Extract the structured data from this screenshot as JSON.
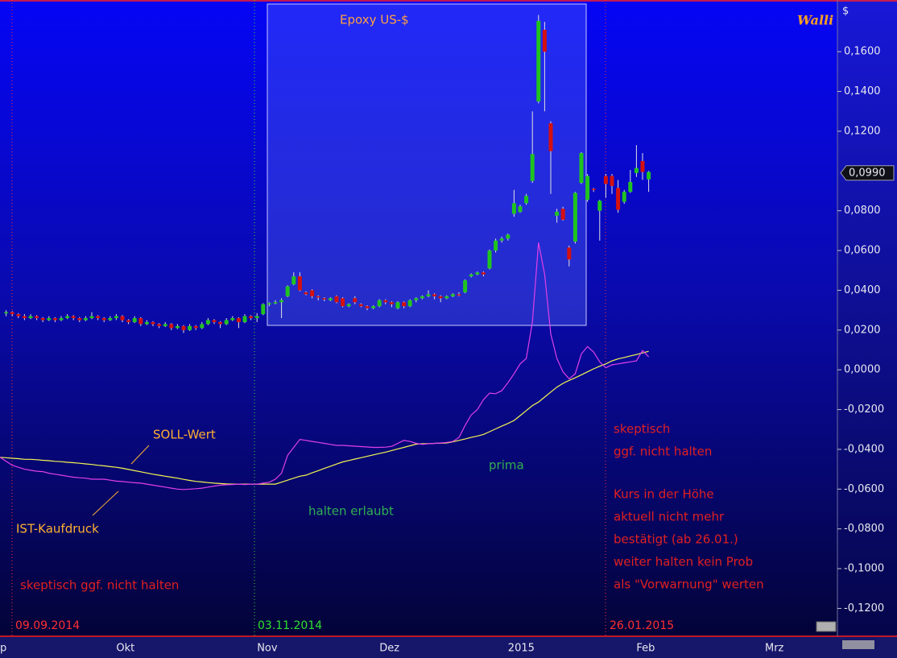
{
  "chart_data": {
    "type": "candlestick",
    "title": "Epoxy US-$",
    "logo": "Walli",
    "y_unit": "$",
    "up_color": "#1fc41f",
    "down_color": "#d41010",
    "ylim": [
      -0.134,
      0.186
    ],
    "yticks": [
      {
        "value": 0.16,
        "label": "0,1600"
      },
      {
        "value": 0.14,
        "label": "0,1400"
      },
      {
        "value": 0.12,
        "label": "0,1200"
      },
      {
        "value": 0.08,
        "label": "0,0800"
      },
      {
        "value": 0.06,
        "label": "0,0600"
      },
      {
        "value": 0.04,
        "label": "0,0400"
      },
      {
        "value": 0.02,
        "label": "0,0200"
      },
      {
        "value": 0,
        "label": "0,0000"
      },
      {
        "value": -0.02,
        "label": "-0,0200"
      },
      {
        "value": -0.04,
        "label": "-0,0400"
      },
      {
        "value": -0.06,
        "label": "-0,0600"
      },
      {
        "value": -0.08,
        "label": "-0,0800"
      },
      {
        "value": -0.1,
        "label": "-0,1000"
      },
      {
        "value": -0.12,
        "label": "-0,1200"
      }
    ],
    "last_price": {
      "value": 0.099,
      "label": "0,0990"
    },
    "categories": [
      "p",
      null,
      null,
      null,
      null,
      null,
      null,
      null,
      null,
      null,
      null,
      null,
      null,
      null,
      null,
      null,
      null,
      null,
      null,
      "Okt",
      null,
      null,
      null,
      null,
      null,
      null,
      null,
      null,
      null,
      null,
      null,
      null,
      null,
      null,
      null,
      null,
      null,
      null,
      null,
      null,
      null,
      null,
      "Nov",
      null,
      null,
      null,
      null,
      null,
      null,
      null,
      null,
      null,
      null,
      null,
      null,
      null,
      null,
      null,
      null,
      null,
      null,
      null,
      "Dez",
      null,
      null,
      null,
      null,
      null,
      null,
      null,
      null,
      null,
      null,
      null,
      null,
      null,
      null,
      null,
      null,
      null,
      null,
      null,
      null,
      "2015",
      null,
      null,
      null,
      null,
      null,
      null,
      null,
      null,
      null,
      null,
      null,
      null,
      null,
      null,
      null,
      null,
      null,
      null,
      null,
      null,
      "Feb",
      null,
      null,
      null,
      null,
      null,
      null,
      null,
      null,
      null,
      null,
      null,
      null,
      null,
      null,
      null,
      null,
      null,
      null,
      null,
      null,
      "Mrz",
      null,
      null,
      null,
      null,
      null,
      null,
      null,
      null,
      null,
      null,
      null
    ],
    "open": [
      null,
      0.0285,
      0.029,
      0.028,
      0.027,
      0.026,
      0.027,
      0.026,
      0.025,
      0.026,
      0.025,
      0.026,
      0.027,
      0.026,
      0.025,
      0.026,
      0.027,
      0.026,
      0.025,
      0.026,
      0.027,
      0.025,
      0.024,
      0.026,
      0.023,
      0.024,
      0.023,
      0.022,
      0.023,
      0.021,
      0.022,
      0.02,
      0.022,
      0.021,
      0.023,
      0.025,
      0.024,
      0.023,
      0.025,
      0.026,
      0.024,
      0.027,
      0.026,
      0.028,
      0.033,
      0.0335,
      0.034,
      0.037,
      0.043,
      0.047,
      0.039,
      0.04,
      0.037,
      0.036,
      0.035,
      0.037,
      0.036,
      0.032,
      0.036,
      0.033,
      0.032,
      0.031,
      0.032,
      0.035,
      0.034,
      0.031,
      0.034,
      0.032,
      0.035,
      0.036,
      0.037,
      0.038,
      0.037,
      0.036,
      0.037,
      0.038,
      0.039,
      0.047,
      0.048,
      0.049,
      0.051,
      0.06,
      0.065,
      0.066,
      0.0785,
      0.0794,
      0.0838,
      0.095,
      0.135,
      0.171,
      0.124,
      0.0775,
      0.081,
      0.0615,
      0.0645,
      0.094,
      0.0855,
      0.091,
      0.08,
      0.0975,
      0.0975,
      0.0915,
      0.0845,
      0.0895,
      0.099,
      0.105,
      0.0958,
      null,
      null,
      null,
      null,
      null,
      null,
      null,
      null,
      null,
      null,
      null,
      null,
      null,
      null,
      null,
      null,
      null,
      null,
      null,
      null,
      null,
      null,
      null,
      null,
      null,
      null,
      null,
      null,
      null,
      null
    ],
    "high": [
      null,
      0.03,
      0.0295,
      0.0285,
      0.028,
      0.028,
      0.0275,
      0.0265,
      0.027,
      0.0265,
      0.027,
      0.028,
      0.0275,
      0.0265,
      0.027,
      0.029,
      0.0275,
      0.0265,
      0.027,
      0.028,
      0.0275,
      0.0255,
      0.027,
      0.0265,
      0.025,
      0.0245,
      0.0235,
      0.024,
      0.0235,
      0.023,
      0.0225,
      0.023,
      0.0225,
      0.024,
      0.026,
      0.0255,
      0.0245,
      0.026,
      0.027,
      0.0265,
      0.028,
      0.0275,
      0.0285,
      0.0335,
      0.034,
      0.035,
      0.036,
      0.0425,
      0.049,
      0.049,
      0.0395,
      0.0405,
      0.0375,
      0.0365,
      0.0365,
      0.0375,
      0.0365,
      0.0335,
      0.037,
      0.0335,
      0.0325,
      0.0325,
      0.0355,
      0.0355,
      0.0345,
      0.0345,
      0.0345,
      0.0355,
      0.0365,
      0.0375,
      0.04,
      0.0385,
      0.0375,
      0.0375,
      0.0385,
      0.039,
      0.0455,
      0.0485,
      0.0495,
      0.0495,
      0.0605,
      0.066,
      0.067,
      0.0685,
      0.0905,
      0.083,
      0.0885,
      0.13,
      0.1785,
      0.175,
      0.125,
      0.081,
      0.082,
      0.0625,
      0.0895,
      0.1095,
      0.0985,
      0.0915,
      0.0855,
      0.0985,
      0.0985,
      0.0955,
      0.0905,
      0.1005,
      0.113,
      0.109,
      0.1,
      null,
      null,
      null,
      null,
      null,
      null,
      null,
      null,
      null,
      null,
      null,
      null,
      null,
      null,
      null,
      null,
      null,
      null,
      null,
      null,
      null,
      null,
      null,
      null,
      null,
      null,
      null,
      null,
      null,
      null
    ],
    "low": [
      null,
      0.027,
      0.027,
      0.026,
      0.025,
      0.0255,
      0.025,
      0.024,
      0.0245,
      0.024,
      0.0245,
      0.0255,
      0.025,
      0.024,
      0.0245,
      0.0255,
      0.025,
      0.024,
      0.0245,
      0.025,
      0.024,
      0.023,
      0.0235,
      0.022,
      0.0225,
      0.022,
      0.021,
      0.0215,
      0.02,
      0.0205,
      0.0185,
      0.0195,
      0.02,
      0.0205,
      0.0225,
      0.023,
      0.021,
      0.0225,
      0.0245,
      0.021,
      0.0235,
      0.025,
      0.024,
      0.0275,
      0.032,
      0.033,
      0.026,
      0.0365,
      0.0425,
      0.0395,
      0.0375,
      0.036,
      0.035,
      0.0345,
      0.0345,
      0.0335,
      0.0315,
      0.0315,
      0.033,
      0.0315,
      0.03,
      0.0305,
      0.0315,
      0.033,
      0.0315,
      0.0305,
      0.031,
      0.0315,
      0.034,
      0.0355,
      0.0365,
      0.0355,
      0.034,
      0.0355,
      0.0365,
      0.037,
      0.0385,
      0.0465,
      0.0475,
      0.047,
      0.0505,
      0.059,
      0.064,
      0.065,
      0.077,
      0.079,
      0.083,
      0.094,
      0.134,
      0.13,
      0.0885,
      0.074,
      0.075,
      0.052,
      0.0635,
      0.0935,
      0.0845,
      0.0895,
      0.065,
      0.0865,
      0.0885,
      0.079,
      0.0835,
      0.089,
      0.097,
      0.0955,
      0.0895,
      null,
      null,
      null,
      null,
      null,
      null,
      null,
      null,
      null,
      null,
      null,
      null,
      null,
      null,
      null,
      null,
      null,
      null,
      null,
      null,
      null,
      null,
      null,
      null,
      null,
      null,
      null,
      null,
      null,
      null
    ],
    "close": [
      null,
      0.029,
      0.028,
      0.027,
      0.026,
      0.027,
      0.026,
      0.025,
      0.026,
      0.025,
      0.026,
      0.027,
      0.026,
      0.025,
      0.026,
      0.027,
      0.026,
      0.025,
      0.026,
      0.027,
      0.025,
      0.024,
      0.026,
      0.023,
      0.024,
      0.023,
      0.022,
      0.023,
      0.021,
      0.022,
      0.02,
      0.022,
      0.021,
      0.023,
      0.025,
      0.024,
      0.023,
      0.025,
      0.026,
      0.024,
      0.027,
      0.026,
      0.027,
      0.033,
      0.0335,
      0.034,
      0.035,
      0.042,
      0.047,
      0.04,
      0.038,
      0.037,
      0.0365,
      0.0355,
      0.036,
      0.034,
      0.032,
      0.033,
      0.034,
      0.032,
      0.031,
      0.032,
      0.035,
      0.034,
      0.033,
      0.034,
      0.032,
      0.035,
      0.036,
      0.037,
      0.038,
      0.037,
      0.036,
      0.037,
      0.038,
      0.0375,
      0.045,
      0.048,
      0.049,
      0.048,
      0.06,
      0.065,
      0.066,
      0.068,
      0.0838,
      0.0822,
      0.0875,
      0.1085,
      0.1755,
      0.16,
      0.11,
      0.0795,
      0.0755,
      0.0555,
      0.089,
      0.109,
      0.0975,
      0.0905,
      0.085,
      0.0935,
      0.0925,
      0.0805,
      0.0895,
      0.0945,
      0.1015,
      0.0995,
      0.0995,
      null,
      null,
      null,
      null,
      null,
      null,
      null,
      null,
      null,
      null,
      null,
      null,
      null,
      null,
      null,
      null,
      null,
      null,
      null,
      null,
      null,
      null,
      null,
      null,
      null,
      null,
      null,
      null,
      null,
      null
    ],
    "lines": [
      {
        "name": "SOLL-Wert",
        "color": "#f5f552",
        "values": [
          -0.044,
          -0.0442,
          -0.0445,
          -0.0447,
          -0.045,
          -0.045,
          -0.0452,
          -0.0455,
          -0.0457,
          -0.046,
          -0.0462,
          -0.0465,
          -0.0467,
          -0.047,
          -0.0473,
          -0.0476,
          -0.048,
          -0.0483,
          -0.0487,
          -0.049,
          -0.0495,
          -0.0501,
          -0.0507,
          -0.0513,
          -0.0519,
          -0.0525,
          -0.053,
          -0.0535,
          -0.054,
          -0.0545,
          -0.0551,
          -0.0556,
          -0.0561,
          -0.0564,
          -0.0567,
          -0.057,
          -0.0572,
          -0.0574,
          -0.0575,
          -0.0575,
          -0.0575,
          -0.0575,
          -0.0575,
          -0.0575,
          -0.0575,
          -0.0575,
          -0.0565,
          -0.0555,
          -0.0545,
          -0.0535,
          -0.053,
          -0.0518,
          -0.0507,
          -0.0496,
          -0.0485,
          -0.0474,
          -0.0463,
          -0.0456,
          -0.0449,
          -0.0442,
          -0.0435,
          -0.0428,
          -0.0421,
          -0.0414,
          -0.0406,
          -0.0398,
          -0.039,
          -0.0382,
          -0.0374,
          -0.0372,
          -0.0371,
          -0.037,
          -0.0369,
          -0.0368,
          -0.0362,
          -0.0355,
          -0.0348,
          -0.034,
          -0.0333,
          -0.0325,
          -0.0311,
          -0.0297,
          -0.0283,
          -0.027,
          -0.0255,
          -0.023,
          -0.0205,
          -0.018,
          -0.0162,
          -0.0137,
          -0.0112,
          -0.0087,
          -0.0068,
          -0.0053,
          -0.004,
          -0.0025,
          -0.001,
          0.0005,
          0.0018,
          0.003,
          0.0045,
          0.0055,
          0.0062,
          0.007,
          0.0077,
          0.0085,
          0.0093,
          null,
          null,
          null,
          null,
          null,
          null,
          null,
          null,
          null,
          null,
          null,
          null,
          null,
          null,
          null,
          null,
          null,
          null,
          null,
          null,
          null,
          null,
          null,
          null,
          null,
          null,
          null,
          null,
          null,
          null
        ]
      },
      {
        "name": "IST-Kaufdruck",
        "color": "#e040e8",
        "values": [
          -0.044,
          -0.046,
          -0.048,
          -0.049,
          -0.05,
          -0.0505,
          -0.051,
          -0.0512,
          -0.052,
          -0.0525,
          -0.053,
          -0.0535,
          -0.054,
          -0.0543,
          -0.0545,
          -0.055,
          -0.055,
          -0.055,
          -0.0555,
          -0.056,
          -0.0562,
          -0.0565,
          -0.0568,
          -0.057,
          -0.0575,
          -0.058,
          -0.0585,
          -0.059,
          -0.0595,
          -0.06,
          -0.0602,
          -0.06,
          -0.0598,
          -0.0595,
          -0.059,
          -0.0585,
          -0.058,
          -0.0578,
          -0.0577,
          -0.0575,
          -0.0577,
          -0.0575,
          -0.0575,
          -0.057,
          -0.0565,
          -0.055,
          -0.052,
          -0.043,
          -0.039,
          -0.035,
          -0.0355,
          -0.036,
          -0.0365,
          -0.037,
          -0.0375,
          -0.038,
          -0.038,
          -0.0382,
          -0.0384,
          -0.0386,
          -0.0388,
          -0.039,
          -0.039,
          -0.0389,
          -0.0385,
          -0.037,
          -0.0355,
          -0.036,
          -0.037,
          -0.0375,
          -0.0372,
          -0.037,
          -0.0368,
          -0.0365,
          -0.036,
          -0.034,
          -0.028,
          -0.0227,
          -0.02,
          -0.015,
          -0.0117,
          -0.012,
          -0.0105,
          -0.0065,
          -0.002,
          0.003,
          0.0057,
          0.024,
          0.064,
          0.048,
          0.018,
          0.0057,
          -0.001,
          -0.0045,
          -0.002,
          0.008,
          0.0117,
          0.009,
          0.004,
          0.001,
          0.0025,
          0.003,
          0.0035,
          0.004,
          0.0045,
          0.0097,
          0.0065,
          null,
          null,
          null,
          null,
          null,
          null,
          null,
          null,
          null,
          null,
          null,
          null,
          null,
          null,
          null,
          null,
          null,
          null,
          null,
          null,
          null,
          null,
          null,
          null,
          null,
          null,
          null,
          null,
          null,
          null
        ]
      }
    ],
    "markers": [
      "09.09.2014",
      "03.11.2014",
      "26.01.2015"
    ],
    "annotations": [
      "skeptisch ggf. nicht halten",
      "halten erlaubt",
      "prima",
      "skeptisch",
      "ggf. nicht halten",
      "Kurs in der Höhe",
      "aktuell nicht mehr",
      "bestätigt (ab 26.01.)",
      "weiter halten kein Prob",
      "als \"Vorwarnung\" werten"
    ]
  }
}
